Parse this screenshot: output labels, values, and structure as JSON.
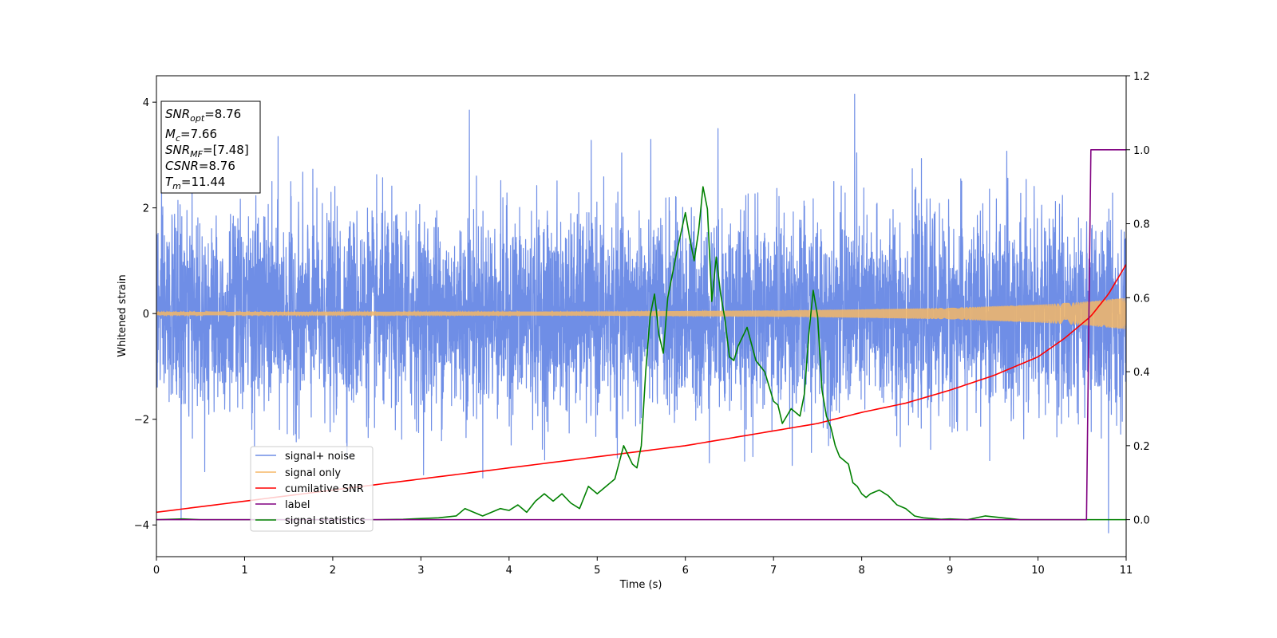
{
  "chart_data": {
    "type": "line",
    "xlabel": "Time (s)",
    "ylabel_left": "Whitened strain",
    "xlim": [
      0,
      11
    ],
    "ylim_left": [
      -4.6,
      4.5
    ],
    "ylim_right": [
      -0.1,
      1.2
    ],
    "xticks": [
      "0",
      "1",
      "2",
      "3",
      "4",
      "5",
      "6",
      "7",
      "8",
      "9",
      "10",
      "11"
    ],
    "yticks_left": [
      "−4",
      "−2",
      "0",
      "2",
      "4"
    ],
    "yticks_right": [
      "0.0",
      "0.2",
      "0.4",
      "0.6",
      "0.8",
      "1.0",
      "1.2"
    ],
    "yticks_left_values": [
      -4,
      -2,
      0,
      2,
      4
    ],
    "yticks_right_values": [
      0.0,
      0.2,
      0.4,
      0.6,
      0.8,
      1.0,
      1.2
    ],
    "legend_placement": "lower-left",
    "info_box": {
      "snr_opt": {
        "main": "SNR",
        "sub": "opt",
        "value": "=8.76"
      },
      "mc": {
        "main": "M",
        "sub": "c",
        "value": "=7.66"
      },
      "snr_mf": {
        "main": "SNR",
        "sub": "MF",
        "value": "=[7.48]"
      },
      "csnr": {
        "main": "CSNR",
        "value": "=8.76"
      },
      "tm": {
        "main": "T",
        "sub": "m",
        "value": "=11.44"
      }
    },
    "series": [
      {
        "name": "signal+ noise",
        "axis": "left",
        "color": "#6f8ee6",
        "kind": "noise",
        "sigma": 1.0,
        "peaks_note_points": [
          [
            0.28,
            -3.9
          ],
          [
            1.38,
            3.35
          ],
          [
            3.55,
            3.85
          ],
          [
            6.37,
            3.5
          ],
          [
            7.92,
            4.15
          ],
          [
            10.8,
            -4.15
          ]
        ]
      },
      {
        "name": "signal only",
        "axis": "left",
        "color": "#f5b766",
        "kind": "chirp",
        "amplitude_points": [
          [
            0,
            0.03
          ],
          [
            5,
            0.04
          ],
          [
            7,
            0.06
          ],
          [
            8,
            0.08
          ],
          [
            9,
            0.11
          ],
          [
            10,
            0.17
          ],
          [
            10.5,
            0.22
          ],
          [
            11,
            0.3
          ]
        ]
      },
      {
        "name": "cumilative SNR",
        "axis": "right",
        "color": "#ff0000",
        "x": [
          0,
          1,
          2,
          3,
          4,
          5,
          6,
          7,
          7.5,
          8,
          8.5,
          9,
          9.5,
          10,
          10.3,
          10.6,
          10.8,
          11
        ],
        "y": [
          0.02,
          0.05,
          0.08,
          0.11,
          0.14,
          0.17,
          0.2,
          0.24,
          0.26,
          0.29,
          0.315,
          0.35,
          0.39,
          0.44,
          0.49,
          0.55,
          0.61,
          0.69
        ]
      },
      {
        "name": "label",
        "axis": "right",
        "color": "#800080",
        "x": [
          0,
          10.55,
          10.6,
          11
        ],
        "y": [
          0.0,
          0.0,
          1.0,
          1.0
        ]
      },
      {
        "name": "signal statistics",
        "axis": "right",
        "color": "#008000",
        "x": [
          0,
          0.3,
          0.5,
          1,
          1.5,
          2,
          2.5,
          2.8,
          3.0,
          3.2,
          3.4,
          3.5,
          3.6,
          3.7,
          3.8,
          3.9,
          4.0,
          4.1,
          4.2,
          4.3,
          4.4,
          4.5,
          4.6,
          4.7,
          4.8,
          4.9,
          5.0,
          5.1,
          5.2,
          5.3,
          5.4,
          5.45,
          5.5,
          5.55,
          5.6,
          5.65,
          5.7,
          5.75,
          5.8,
          5.85,
          5.9,
          6.0,
          6.05,
          6.1,
          6.15,
          6.2,
          6.25,
          6.3,
          6.35,
          6.4,
          6.45,
          6.5,
          6.55,
          6.6,
          6.7,
          6.8,
          6.9,
          7.0,
          7.05,
          7.1,
          7.15,
          7.2,
          7.3,
          7.35,
          7.4,
          7.45,
          7.5,
          7.55,
          7.6,
          7.65,
          7.7,
          7.75,
          7.8,
          7.85,
          7.9,
          7.95,
          8.0,
          8.05,
          8.1,
          8.2,
          8.3,
          8.4,
          8.5,
          8.6,
          8.7,
          8.8,
          8.9,
          9.0,
          9.2,
          9.4,
          9.6,
          9.8,
          10.0,
          10.2,
          10.55,
          10.6,
          10.8,
          11
        ],
        "y": [
          0.0,
          0.002,
          0.0,
          0.0,
          0.0,
          0.0,
          0.0,
          0.001,
          0.003,
          0.005,
          0.01,
          0.03,
          0.02,
          0.01,
          0.02,
          0.03,
          0.025,
          0.04,
          0.02,
          0.05,
          0.07,
          0.05,
          0.07,
          0.045,
          0.03,
          0.09,
          0.07,
          0.09,
          0.11,
          0.2,
          0.15,
          0.14,
          0.2,
          0.4,
          0.55,
          0.61,
          0.5,
          0.45,
          0.6,
          0.66,
          0.72,
          0.83,
          0.76,
          0.7,
          0.78,
          0.9,
          0.84,
          0.59,
          0.71,
          0.61,
          0.54,
          0.44,
          0.43,
          0.47,
          0.52,
          0.43,
          0.4,
          0.32,
          0.31,
          0.26,
          0.28,
          0.3,
          0.28,
          0.34,
          0.5,
          0.62,
          0.55,
          0.35,
          0.28,
          0.25,
          0.2,
          0.17,
          0.16,
          0.15,
          0.1,
          0.09,
          0.07,
          0.06,
          0.07,
          0.08,
          0.065,
          0.04,
          0.03,
          0.01,
          0.005,
          0.003,
          0.001,
          0.002,
          0.0,
          0.01,
          0.005,
          0.0,
          0.0,
          0.0,
          0.0,
          0.0,
          0.0,
          0.0
        ]
      }
    ]
  }
}
